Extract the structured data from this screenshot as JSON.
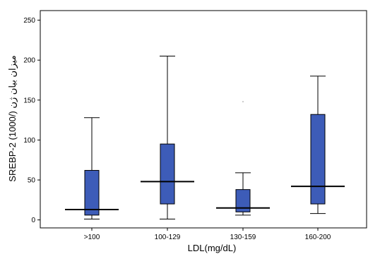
{
  "chart_data": {
    "type": "boxplot",
    "xlabel": "LDL(mg/dL)",
    "ylabel": "SREBP-2 میزان بیان ژن (/1000)",
    "ylim": [
      -10,
      262
    ],
    "yticks": [
      0,
      50,
      100,
      150,
      200,
      250
    ],
    "categories": [
      ">100",
      "100-129",
      "130-159",
      "160-200"
    ],
    "boxes": [
      {
        "category": ">100",
        "min": 1,
        "q1": 6,
        "median": 13,
        "q3": 62,
        "max": 128
      },
      {
        "category": "100-129",
        "min": 1,
        "q1": 20,
        "median": 48,
        "q3": 95,
        "max": 205
      },
      {
        "category": "130-159",
        "min": 6,
        "q1": 10,
        "median": 15,
        "q3": 38,
        "max": 59
      },
      {
        "category": "160-200",
        "min": 8,
        "q1": 20,
        "median": 42,
        "q3": 132,
        "max": 180
      }
    ],
    "outliers": [
      {
        "category": "130-159",
        "value": 148
      }
    ],
    "colors": {
      "box_fill": "#3d5cb8",
      "box_stroke": "#000000",
      "axis": "#000000"
    }
  }
}
